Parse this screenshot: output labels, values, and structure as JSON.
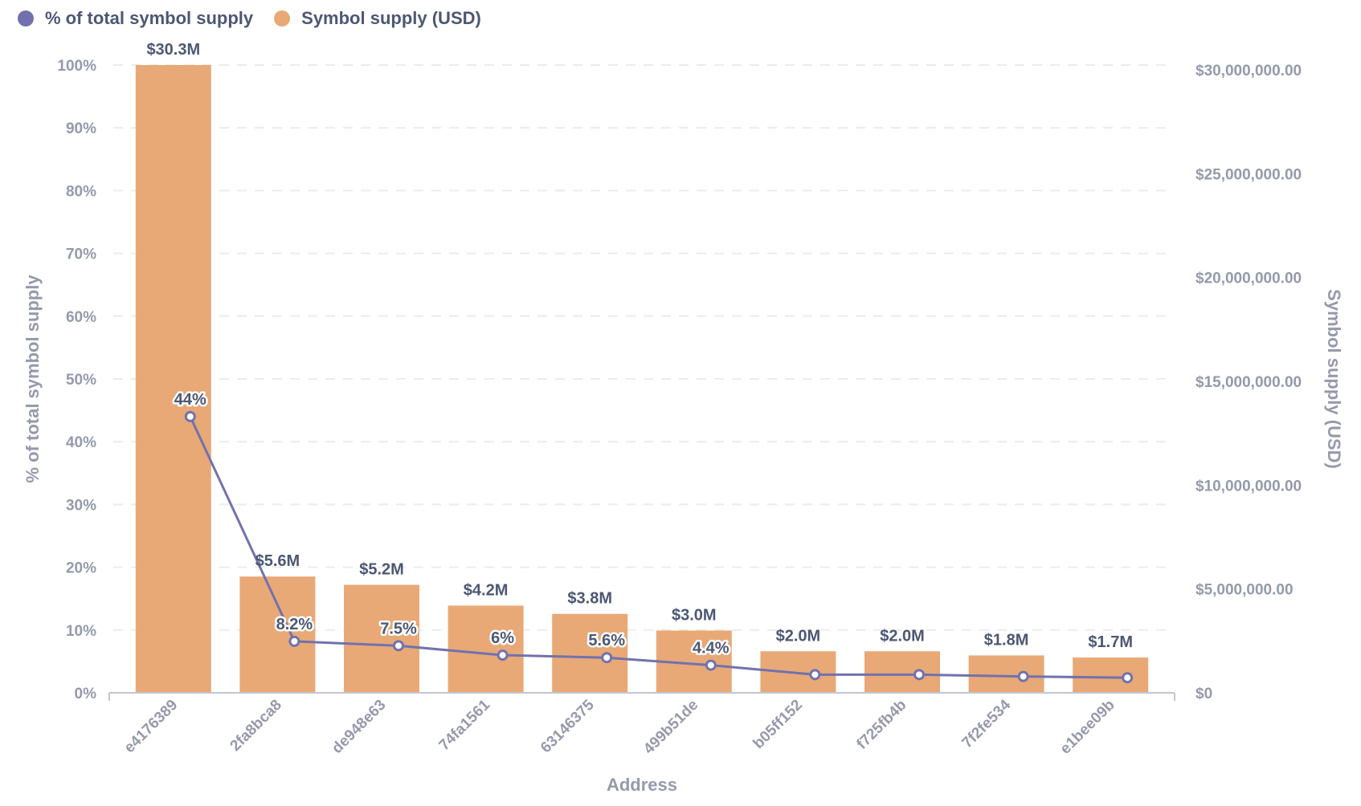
{
  "legend": {
    "items": [
      {
        "label": "% of total symbol supply",
        "color": "#7172AD"
      },
      {
        "label": "Symbol supply (USD)",
        "color": "#E8A977"
      }
    ]
  },
  "chart_data": {
    "type": "bar",
    "title": "",
    "xlabel": "Address",
    "ylabel": "% of total symbol supply",
    "y2label": "Symbol supply (USD)",
    "categories": [
      "e4176389",
      "2fa8bca8",
      "de948e63",
      "74fa1561",
      "63146375",
      "499b51de",
      "b05ff152",
      "f725fb4b",
      "7f2fe534",
      "e1bee09b"
    ],
    "series": [
      {
        "name": "Symbol supply (USD)",
        "type": "bar",
        "axis": "right",
        "color": "#E8A977",
        "values": [
          30300000,
          5600000,
          5200000,
          4200000,
          3800000,
          3000000,
          2000000,
          2000000,
          1800000,
          1700000
        ],
        "data_labels": [
          "$30.3M",
          "$5.6M",
          "$5.2M",
          "$4.2M",
          "$3.8M",
          "$3.0M",
          "$2.0M",
          "$2.0M",
          "$1.8M",
          "$1.7M"
        ]
      },
      {
        "name": "% of total symbol supply",
        "type": "line",
        "axis": "left",
        "color": "#7172AD",
        "values": [
          44,
          8.2,
          7.5,
          6,
          5.6,
          4.4,
          2.9,
          2.9,
          2.6,
          2.4
        ],
        "data_labels": [
          "44%",
          "8.2%",
          "7.5%",
          "6%",
          "5.6%",
          "4.4%",
          "",
          "",
          "",
          ""
        ]
      }
    ],
    "y_left": {
      "ylim": [
        0,
        100
      ],
      "ticks": [
        0,
        10,
        20,
        30,
        40,
        50,
        60,
        70,
        80,
        90,
        100
      ],
      "tick_labels": [
        "0%",
        "10%",
        "20%",
        "30%",
        "40%",
        "50%",
        "60%",
        "70%",
        "80%",
        "90%",
        "100%"
      ]
    },
    "y_right": {
      "ylim": [
        0,
        30300000
      ],
      "ticks": [
        0,
        5000000,
        10000000,
        15000000,
        20000000,
        25000000,
        30000000
      ],
      "tick_labels": [
        "$0",
        "$5,000,000.00",
        "$10,000,000.00",
        "$15,000,000.00",
        "$20,000,000.00",
        "$25,000,000.00",
        "$30,000,000.00"
      ]
    },
    "grid": true,
    "legend_position": "top-left"
  }
}
